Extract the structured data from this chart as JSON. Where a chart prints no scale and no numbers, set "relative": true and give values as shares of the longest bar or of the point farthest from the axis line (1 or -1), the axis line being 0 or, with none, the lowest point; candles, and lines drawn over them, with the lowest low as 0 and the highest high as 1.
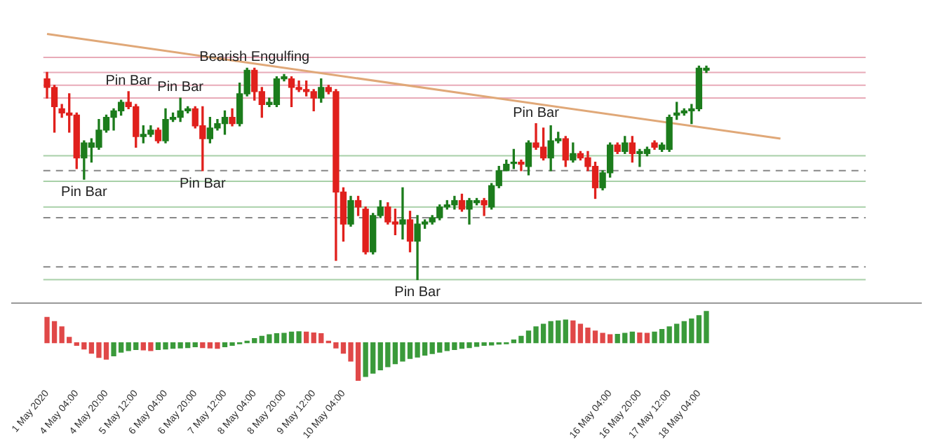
{
  "chart_data": [
    {
      "type": "candlestick",
      "relative": true,
      "tick_labels": false,
      "categories": [
        null,
        null,
        null,
        null,
        null,
        null,
        null,
        null,
        null,
        null,
        null,
        null,
        null,
        null,
        null,
        null,
        null,
        null,
        null,
        null,
        null,
        null,
        null,
        null,
        null,
        null,
        null,
        null,
        null,
        null,
        null,
        null,
        null,
        null,
        null,
        null,
        null,
        null,
        null,
        null,
        null,
        null,
        null,
        null,
        null,
        null,
        null,
        null,
        null,
        null,
        null,
        null,
        null,
        null,
        null,
        null,
        null,
        null,
        null,
        null,
        null,
        null,
        null,
        null,
        null,
        null,
        null,
        null,
        null,
        null,
        null,
        null,
        null,
        null,
        null,
        null,
        null,
        null,
        null,
        null,
        null,
        null,
        null,
        null,
        null,
        null,
        null,
        null,
        null,
        null,
        null,
        null,
        null,
        null,
        null,
        null,
        null,
        null,
        null,
        null,
        null,
        null,
        null,
        null,
        null,
        null,
        null,
        null,
        null,
        null,
        null
      ],
      "ohlc": [
        [
          0.94,
          0.97,
          0.85,
          0.9
        ],
        [
          0.9,
          0.91,
          0.69,
          0.81
        ],
        [
          0.8,
          0.82,
          0.76,
          0.78
        ],
        [
          0.78,
          0.87,
          0.69,
          0.77
        ],
        [
          0.77,
          0.78,
          0.52,
          0.57
        ],
        [
          0.57,
          0.65,
          0.47,
          0.64
        ],
        [
          0.62,
          0.66,
          0.55,
          0.64
        ],
        [
          0.62,
          0.75,
          0.61,
          0.7
        ],
        [
          0.7,
          0.77,
          0.69,
          0.76
        ],
        [
          0.76,
          0.8,
          0.7,
          0.79
        ],
        [
          0.79,
          0.84,
          0.77,
          0.83
        ],
        [
          0.83,
          0.88,
          0.8,
          0.81
        ],
        [
          0.81,
          0.82,
          0.62,
          0.67
        ],
        [
          0.67,
          0.72,
          0.64,
          0.68
        ],
        [
          0.68,
          0.72,
          0.67,
          0.7
        ],
        [
          0.7,
          0.71,
          0.64,
          0.65
        ],
        [
          0.65,
          0.8,
          0.64,
          0.75
        ],
        [
          0.75,
          0.78,
          0.74,
          0.76
        ],
        [
          0.76,
          0.85,
          0.74,
          0.79
        ],
        [
          0.79,
          0.81,
          0.78,
          0.8
        ],
        [
          0.8,
          0.81,
          0.71,
          0.72
        ],
        [
          0.72,
          0.81,
          0.51,
          0.66
        ],
        [
          0.66,
          0.76,
          0.64,
          0.71
        ],
        [
          0.71,
          0.75,
          0.7,
          0.73
        ],
        [
          0.73,
          0.79,
          0.68,
          0.76
        ],
        [
          0.76,
          0.8,
          0.72,
          0.73
        ],
        [
          0.73,
          0.92,
          0.72,
          0.87
        ],
        [
          0.87,
          0.99,
          0.86,
          0.98
        ],
        [
          0.98,
          0.99,
          0.84,
          0.88
        ],
        [
          0.88,
          0.9,
          0.76,
          0.82
        ],
        [
          0.82,
          0.85,
          0.81,
          0.83
        ],
        [
          0.82,
          0.95,
          0.81,
          0.94
        ],
        [
          0.94,
          0.96,
          0.93,
          0.95
        ],
        [
          0.94,
          0.95,
          0.81,
          0.9
        ],
        [
          0.9,
          0.93,
          0.88,
          0.89
        ],
        [
          0.89,
          0.93,
          0.86,
          0.88
        ],
        [
          0.88,
          0.89,
          0.79,
          0.85
        ],
        [
          0.85,
          0.94,
          0.83,
          0.9
        ],
        [
          0.9,
          0.91,
          0.87,
          0.88
        ],
        [
          0.88,
          0.89,
          0.09,
          0.41
        ],
        [
          0.41,
          0.43,
          0.18,
          0.26
        ],
        [
          0.26,
          0.39,
          0.25,
          0.37
        ],
        [
          0.37,
          0.39,
          0.3,
          0.34
        ],
        [
          0.33,
          0.34,
          0.12,
          0.13
        ],
        [
          0.13,
          0.31,
          0.12,
          0.3
        ],
        [
          0.3,
          0.37,
          0.29,
          0.34
        ],
        [
          0.34,
          0.36,
          0.26,
          0.27
        ],
        [
          0.27,
          0.33,
          0.21,
          0.26
        ],
        [
          0.26,
          0.43,
          0.19,
          0.28
        ],
        [
          0.28,
          0.32,
          0.13,
          0.18
        ],
        [
          0.18,
          0.3,
          0,
          0.26
        ],
        [
          0.26,
          0.28,
          0.24,
          0.27
        ],
        [
          0.27,
          0.3,
          0.26,
          0.29
        ],
        [
          0.29,
          0.35,
          0.28,
          0.34
        ],
        [
          0.34,
          0.37,
          0.33,
          0.35
        ],
        [
          0.35,
          0.39,
          0.33,
          0.37
        ],
        [
          0.37,
          0.4,
          0.32,
          0.33
        ],
        [
          0.33,
          0.38,
          0.26,
          0.37
        ],
        [
          0.36,
          0.38,
          0.35,
          0.37
        ],
        [
          0.37,
          0.38,
          0.3,
          0.35
        ],
        [
          0.34,
          0.45,
          0.33,
          0.44
        ],
        [
          0.44,
          0.53,
          0.43,
          0.51
        ],
        [
          0.51,
          0.56,
          0.51,
          0.54
        ],
        [
          0.55,
          0.61,
          0.52,
          0.55
        ],
        [
          0.55,
          0.56,
          0.51,
          0.54
        ],
        [
          0.53,
          0.65,
          0.49,
          0.64
        ],
        [
          0.64,
          0.73,
          0.61,
          0.62
        ],
        [
          0.62,
          0.71,
          0.56,
          0.57
        ],
        [
          0.57,
          0.72,
          0.51,
          0.65
        ],
        [
          0.65,
          0.69,
          0.64,
          0.66
        ],
        [
          0.66,
          0.67,
          0.53,
          0.56
        ],
        [
          0.56,
          0.64,
          0.55,
          0.59
        ],
        [
          0.59,
          0.6,
          0.56,
          0.57
        ],
        [
          0.57,
          0.6,
          0.51,
          0.53
        ],
        [
          0.53,
          0.55,
          0.38,
          0.43
        ],
        [
          0.43,
          0.51,
          0.42,
          0.5
        ],
        [
          0.5,
          0.64,
          0.48,
          0.63
        ],
        [
          0.63,
          0.64,
          0.59,
          0.6
        ],
        [
          0.6,
          0.67,
          0.59,
          0.64
        ],
        [
          0.64,
          0.67,
          0.55,
          0.59
        ],
        [
          0.59,
          0.61,
          0.53,
          0.6
        ],
        [
          0.59,
          0.62,
          0.58,
          0.61
        ],
        [
          0.64,
          0.65,
          0.61,
          0.62
        ],
        [
          0.61,
          0.64,
          0.6,
          0.63
        ],
        [
          0.61,
          0.77,
          0.6,
          0.76
        ],
        [
          0.77,
          0.83,
          0.75,
          0.78
        ],
        [
          0.78,
          0.8,
          0.77,
          0.79
        ],
        [
          0.79,
          0.82,
          0.73,
          0.8
        ],
        [
          0.8,
          1,
          0.79,
          0.99
        ],
        [
          0.98,
          1,
          0.97,
          0.99
        ],
        null,
        null,
        null,
        null,
        null,
        null,
        null,
        null,
        null,
        null,
        null,
        null,
        null,
        null,
        null,
        null,
        null,
        null,
        null,
        null,
        null
      ],
      "colors": [
        "#e0201c",
        "#e0201c",
        "#e0201c",
        "#e0201c",
        "#e0201c",
        "#1c7c1c",
        "#1c7c1c",
        "#1c7c1c",
        "#1c7c1c",
        "#1c7c1c",
        "#1c7c1c",
        "#e0201c",
        "#e0201c",
        "#1c7c1c",
        "#1c7c1c",
        "#e0201c",
        "#1c7c1c",
        "#1c7c1c",
        "#1c7c1c",
        "#1c7c1c",
        "#e0201c",
        "#e0201c",
        "#1c7c1c",
        "#1c7c1c",
        "#1c7c1c",
        "#e0201c",
        "#1c7c1c",
        "#1c7c1c",
        "#e0201c",
        "#e0201c",
        "#1c7c1c",
        "#1c7c1c",
        "#1c7c1c",
        "#e0201c",
        "#e0201c",
        "#e0201c",
        "#e0201c",
        "#1c7c1c",
        "#e0201c",
        "#e0201c",
        "#e0201c",
        "#1c7c1c",
        "#e0201c",
        "#e0201c",
        "#1c7c1c",
        "#1c7c1c",
        "#e0201c",
        "#e0201c",
        "#1c7c1c",
        "#e0201c",
        "#1c7c1c",
        "#1c7c1c",
        "#1c7c1c",
        "#1c7c1c",
        "#1c7c1c",
        "#1c7c1c",
        "#e0201c",
        "#1c7c1c",
        "#1c7c1c",
        "#e0201c",
        "#1c7c1c",
        "#1c7c1c",
        "#1c7c1c",
        "#1c7c1c",
        "#e0201c",
        "#1c7c1c",
        "#e0201c",
        "#e0201c",
        "#1c7c1c",
        "#1c7c1c",
        "#e0201c",
        "#1c7c1c",
        "#e0201c",
        "#e0201c",
        "#e0201c",
        "#1c7c1c",
        "#1c7c1c",
        "#e0201c",
        "#1c7c1c",
        "#e0201c",
        "#1c7c1c",
        "#1c7c1c",
        "#e0201c",
        "#1c7c1c",
        "#1c7c1c",
        "#1c7c1c",
        "#1c7c1c",
        "#1c7c1c",
        "#1c7c1c",
        "#1c7c1c",
        null,
        null,
        null,
        null,
        null,
        null,
        null,
        null,
        null,
        null,
        null,
        null,
        null,
        null,
        null,
        null,
        null,
        null,
        null,
        null,
        null
      ],
      "series": [
        {
          "type": "line",
          "color": "#e0a878",
          "values": [
            1.15,
            null,
            null,
            null,
            null,
            null,
            null,
            null,
            null,
            null,
            null,
            null,
            null,
            null,
            null,
            null,
            null,
            null,
            null,
            null,
            null,
            null,
            null,
            null,
            null,
            null,
            null,
            null,
            null,
            null,
            null,
            null,
            null,
            null,
            null,
            null,
            null,
            null,
            null,
            null,
            null,
            null,
            null,
            null,
            null,
            null,
            null,
            null,
            null,
            null,
            null,
            null,
            null,
            null,
            null,
            null,
            null,
            null,
            null,
            null,
            null,
            null,
            null,
            null,
            null,
            null,
            null,
            null,
            null,
            null,
            null,
            null,
            null,
            null,
            null,
            null,
            null,
            null,
            null,
            null,
            null,
            null,
            null,
            null,
            null,
            null,
            null,
            null,
            null,
            null,
            null,
            null,
            null,
            null,
            null,
            null,
            null,
            null,
            null,
            0.66,
            null,
            null,
            null,
            null,
            null,
            null,
            null,
            null,
            null,
            null,
            null
          ]
        }
      ],
      "ref_lines": [
        {
          "axis": "y",
          "value": 1.04,
          "color": "#e8aab8",
          "line_style": "solid"
        },
        {
          "axis": "y",
          "value": 0.97,
          "color": "#e8aab8",
          "line_style": "solid"
        },
        {
          "axis": "y",
          "value": 0.91,
          "color": "#e8aab8",
          "line_style": "solid"
        },
        {
          "axis": "y",
          "value": 0.85,
          "color": "#e8aab8",
          "line_style": "solid"
        },
        {
          "axis": "y",
          "value": 0.58,
          "color": "#a8d0a8",
          "line_style": "solid"
        },
        {
          "axis": "y",
          "value": 0.51,
          "color": "#888888",
          "line_style": "dashed"
        },
        {
          "axis": "y",
          "value": 0.46,
          "color": "#a8d0a8",
          "line_style": "solid"
        },
        {
          "axis": "y",
          "value": 0.34,
          "color": "#a8d0a8",
          "line_style": "solid"
        },
        {
          "axis": "y",
          "value": 0.29,
          "color": "#888888",
          "line_style": "dashed"
        },
        {
          "axis": "y",
          "value": 0.06,
          "color": "#888888",
          "line_style": "dashed"
        },
        {
          "axis": "y",
          "value": 0,
          "color": "#a8d0a8",
          "line_style": "solid"
        }
      ],
      "annotations": [
        "Pin Bar",
        "Pin Bar",
        "Bearish Engulfing",
        "Pin Bar",
        "Pin Bar",
        "Pin Bar",
        "Pin Bar"
      ]
    },
    {
      "type": "bar",
      "relative": true,
      "tick_labels": "x",
      "categories": [
        "1 May 2020",
        null,
        null,
        null,
        "4 May 04:00",
        null,
        null,
        null,
        "4 May 20:00",
        null,
        null,
        null,
        "5 May 12:00",
        null,
        null,
        null,
        "6 May 04:00",
        null,
        null,
        null,
        "6 May 20:00",
        null,
        null,
        null,
        "7 May 12:00",
        null,
        null,
        null,
        "8 May 04:00",
        null,
        null,
        null,
        "8 May 20:00",
        null,
        null,
        null,
        "9 May 12:00",
        null,
        null,
        null,
        "10 May 04:00",
        null,
        null,
        null,
        null,
        null,
        null,
        null,
        null,
        null,
        null,
        null,
        null,
        null,
        null,
        null,
        null,
        null,
        null,
        null,
        null,
        null,
        null,
        null,
        null,
        null,
        null,
        null,
        null,
        null,
        null,
        null,
        null,
        null,
        null,
        null,
        "16 May 04:00",
        null,
        null,
        null,
        "16 May 20:00",
        null,
        null,
        null,
        "17 May 12:00",
        null,
        null,
        null,
        "18 May 04:00",
        null,
        null,
        null,
        null,
        null,
        null,
        null,
        null,
        null,
        null,
        null,
        null,
        null,
        null,
        null,
        null,
        null,
        null,
        null,
        null,
        null,
        null
      ],
      "values": [
        0.67,
        0.56,
        0.42,
        0.14,
        -0.07,
        -0.17,
        -0.28,
        -0.39,
        -0.44,
        -0.35,
        -0.25,
        -0.21,
        -0.18,
        -0.19,
        -0.21,
        -0.18,
        -0.17,
        -0.15,
        -0.14,
        -0.13,
        -0.11,
        -0.13,
        -0.14,
        -0.15,
        -0.11,
        -0.07,
        -0.03,
        0.04,
        0.11,
        0.17,
        0.21,
        0.24,
        0.25,
        0.28,
        0.29,
        0.28,
        0.26,
        0.24,
        0.04,
        -0.14,
        -0.28,
        -0.49,
        -1,
        -0.9,
        -0.81,
        -0.72,
        -0.64,
        -0.56,
        -0.49,
        -0.42,
        -0.38,
        -0.33,
        -0.29,
        -0.25,
        -0.21,
        -0.18,
        -0.15,
        -0.13,
        -0.1,
        -0.07,
        -0.06,
        -0.04,
        -0.03,
        0.07,
        0.17,
        0.31,
        0.42,
        0.49,
        0.56,
        0.58,
        0.6,
        0.58,
        0.49,
        0.39,
        0.31,
        0.25,
        0.21,
        0.22,
        0.25,
        0.28,
        0.26,
        0.25,
        0.28,
        0.35,
        0.42,
        0.49,
        0.56,
        0.63,
        0.72,
        0.83,
        null,
        null,
        null,
        null,
        null,
        null,
        null,
        null,
        null,
        null,
        null,
        null,
        null,
        null,
        null,
        null,
        null,
        null,
        null,
        null,
        null
      ],
      "colors": [
        "#e04848",
        "#e04848",
        "#e04848",
        "#e04848",
        "#e04848",
        "#e04848",
        "#e04848",
        "#e04848",
        "#e04848",
        "#3a9a3a",
        "#3a9a3a",
        "#3a9a3a",
        "#3a9a3a",
        "#e04848",
        "#e04848",
        "#3a9a3a",
        "#3a9a3a",
        "#3a9a3a",
        "#3a9a3a",
        "#3a9a3a",
        "#3a9a3a",
        "#e04848",
        "#e04848",
        "#e04848",
        "#3a9a3a",
        "#3a9a3a",
        "#3a9a3a",
        "#3a9a3a",
        "#3a9a3a",
        "#3a9a3a",
        "#3a9a3a",
        "#3a9a3a",
        "#3a9a3a",
        "#3a9a3a",
        "#3a9a3a",
        "#e04848",
        "#e04848",
        "#e04848",
        "#e04848",
        "#e04848",
        "#e04848",
        "#e04848",
        "#e04848",
        "#3a9a3a",
        "#3a9a3a",
        "#3a9a3a",
        "#3a9a3a",
        "#3a9a3a",
        "#3a9a3a",
        "#3a9a3a",
        "#3a9a3a",
        "#3a9a3a",
        "#3a9a3a",
        "#3a9a3a",
        "#3a9a3a",
        "#3a9a3a",
        "#3a9a3a",
        "#3a9a3a",
        "#3a9a3a",
        "#3a9a3a",
        "#3a9a3a",
        "#3a9a3a",
        "#3a9a3a",
        "#3a9a3a",
        "#3a9a3a",
        "#3a9a3a",
        "#3a9a3a",
        "#3a9a3a",
        "#3a9a3a",
        "#3a9a3a",
        "#3a9a3a",
        "#e04848",
        "#e04848",
        "#e04848",
        "#e04848",
        "#e04848",
        "#e04848",
        "#3a9a3a",
        "#3a9a3a",
        "#3a9a3a",
        "#e04848",
        "#e04848",
        "#3a9a3a",
        "#3a9a3a",
        "#3a9a3a",
        "#3a9a3a",
        "#3a9a3a",
        "#3a9a3a",
        "#3a9a3a",
        "#3a9a3a",
        null,
        null,
        null,
        null,
        null,
        null,
        null,
        null,
        null,
        null,
        null,
        null,
        null,
        null,
        null,
        null,
        null,
        null,
        null,
        null,
        null
      ]
    }
  ]
}
